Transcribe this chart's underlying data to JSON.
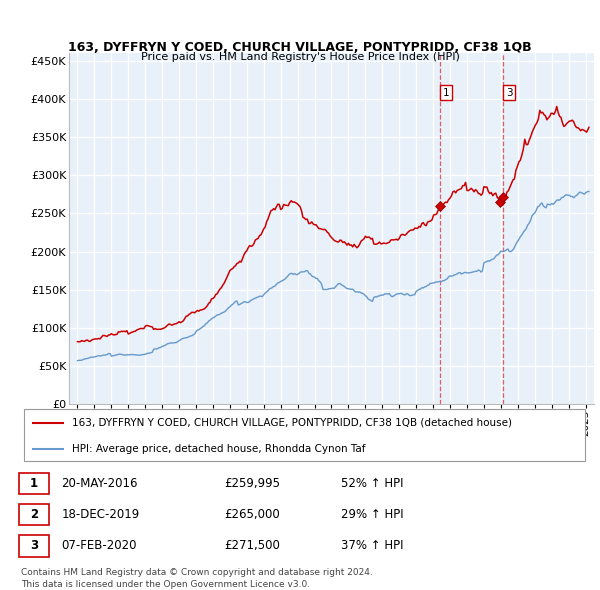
{
  "title": "163, DYFFRYN Y COED, CHURCH VILLAGE, PONTYPRIDD, CF38 1QB",
  "subtitle": "Price paid vs. HM Land Registry's House Price Index (HPI)",
  "red_label": "163, DYFFRYN Y COED, CHURCH VILLAGE, PONTYPRIDD, CF38 1QB (detached house)",
  "blue_label": "HPI: Average price, detached house, Rhondda Cynon Taf",
  "transactions": [
    {
      "num": 1,
      "date": "20-MAY-2016",
      "price": "£259,995",
      "pct": "52% ↑ HPI",
      "x": 2016.38
    },
    {
      "num": 2,
      "date": "18-DEC-2019",
      "price": "£265,000",
      "pct": "29% ↑ HPI",
      "x": 2019.96
    },
    {
      "num": 3,
      "date": "07-FEB-2020",
      "price": "£271,500",
      "pct": "37% ↑ HPI",
      "x": 2020.1
    }
  ],
  "footer": "Contains HM Land Registry data © Crown copyright and database right 2024.\nThis data is licensed under the Open Government Licence v3.0.",
  "ylim": [
    0,
    460000
  ],
  "yticks": [
    0,
    50000,
    100000,
    150000,
    200000,
    250000,
    300000,
    350000,
    400000,
    450000
  ],
  "ytick_labels": [
    "£0",
    "£50K",
    "£100K",
    "£150K",
    "£200K",
    "£250K",
    "£300K",
    "£350K",
    "£400K",
    "£450K"
  ],
  "xlim": [
    1994.5,
    2025.5
  ],
  "background_color": "#dce8f5",
  "chart_bg_color": "#e8f0fa",
  "grid_color": "#ffffff",
  "red_color": "#cc0000",
  "blue_color": "#6699cc",
  "dashed_color": "#dd4444"
}
